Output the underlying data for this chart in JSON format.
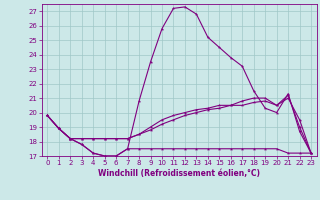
{
  "xlabel": "Windchill (Refroidissement éolien,°C)",
  "background_color": "#cce8e8",
  "line_color": "#800080",
  "grid_color": "#a0c8c8",
  "xlim": [
    -0.5,
    23.5
  ],
  "ylim": [
    17,
    27.5
  ],
  "xticks": [
    0,
    1,
    2,
    3,
    4,
    5,
    6,
    7,
    8,
    9,
    10,
    11,
    12,
    13,
    14,
    15,
    16,
    17,
    18,
    19,
    20,
    21,
    22,
    23
  ],
  "yticks": [
    17,
    18,
    19,
    20,
    21,
    22,
    23,
    24,
    25,
    26,
    27
  ],
  "line1_x": [
    0,
    1,
    2,
    3,
    4,
    5,
    6,
    7,
    8,
    9,
    10,
    11,
    12,
    13,
    14,
    15,
    16,
    17,
    18,
    19,
    20,
    21,
    22,
    23
  ],
  "line1_y": [
    19.8,
    18.9,
    18.2,
    17.8,
    17.2,
    17.0,
    17.0,
    17.5,
    17.5,
    17.5,
    17.5,
    17.5,
    17.5,
    17.5,
    17.5,
    17.5,
    17.5,
    17.5,
    17.5,
    17.5,
    17.5,
    17.2,
    17.2,
    17.2
  ],
  "line2_x": [
    0,
    1,
    2,
    3,
    4,
    5,
    6,
    7,
    8,
    9,
    10,
    11,
    12,
    13,
    14,
    15,
    16,
    17,
    18,
    19,
    20,
    21,
    22,
    23
  ],
  "line2_y": [
    19.8,
    18.9,
    18.2,
    17.8,
    17.2,
    17.0,
    17.0,
    17.5,
    20.8,
    23.5,
    25.8,
    27.2,
    27.3,
    26.8,
    25.2,
    24.5,
    23.8,
    23.2,
    21.5,
    20.3,
    20.0,
    21.3,
    18.7,
    17.2
  ],
  "line3_x": [
    0,
    1,
    2,
    3,
    4,
    5,
    6,
    7,
    8,
    9,
    10,
    11,
    12,
    13,
    14,
    15,
    16,
    17,
    18,
    19,
    20,
    21,
    22,
    23
  ],
  "line3_y": [
    19.8,
    18.9,
    18.2,
    18.2,
    18.2,
    18.2,
    18.2,
    18.2,
    18.5,
    19.0,
    19.5,
    19.8,
    20.0,
    20.2,
    20.3,
    20.5,
    20.5,
    20.8,
    21.0,
    21.0,
    20.5,
    21.2,
    19.0,
    17.2
  ],
  "line4_x": [
    0,
    1,
    2,
    3,
    4,
    5,
    6,
    7,
    8,
    9,
    10,
    11,
    12,
    13,
    14,
    15,
    16,
    17,
    18,
    19,
    20,
    21,
    22,
    23
  ],
  "line4_y": [
    19.8,
    18.9,
    18.2,
    18.2,
    18.2,
    18.2,
    18.2,
    18.2,
    18.5,
    18.8,
    19.2,
    19.5,
    19.8,
    20.0,
    20.2,
    20.3,
    20.5,
    20.5,
    20.7,
    20.8,
    20.5,
    21.0,
    19.5,
    17.2
  ]
}
